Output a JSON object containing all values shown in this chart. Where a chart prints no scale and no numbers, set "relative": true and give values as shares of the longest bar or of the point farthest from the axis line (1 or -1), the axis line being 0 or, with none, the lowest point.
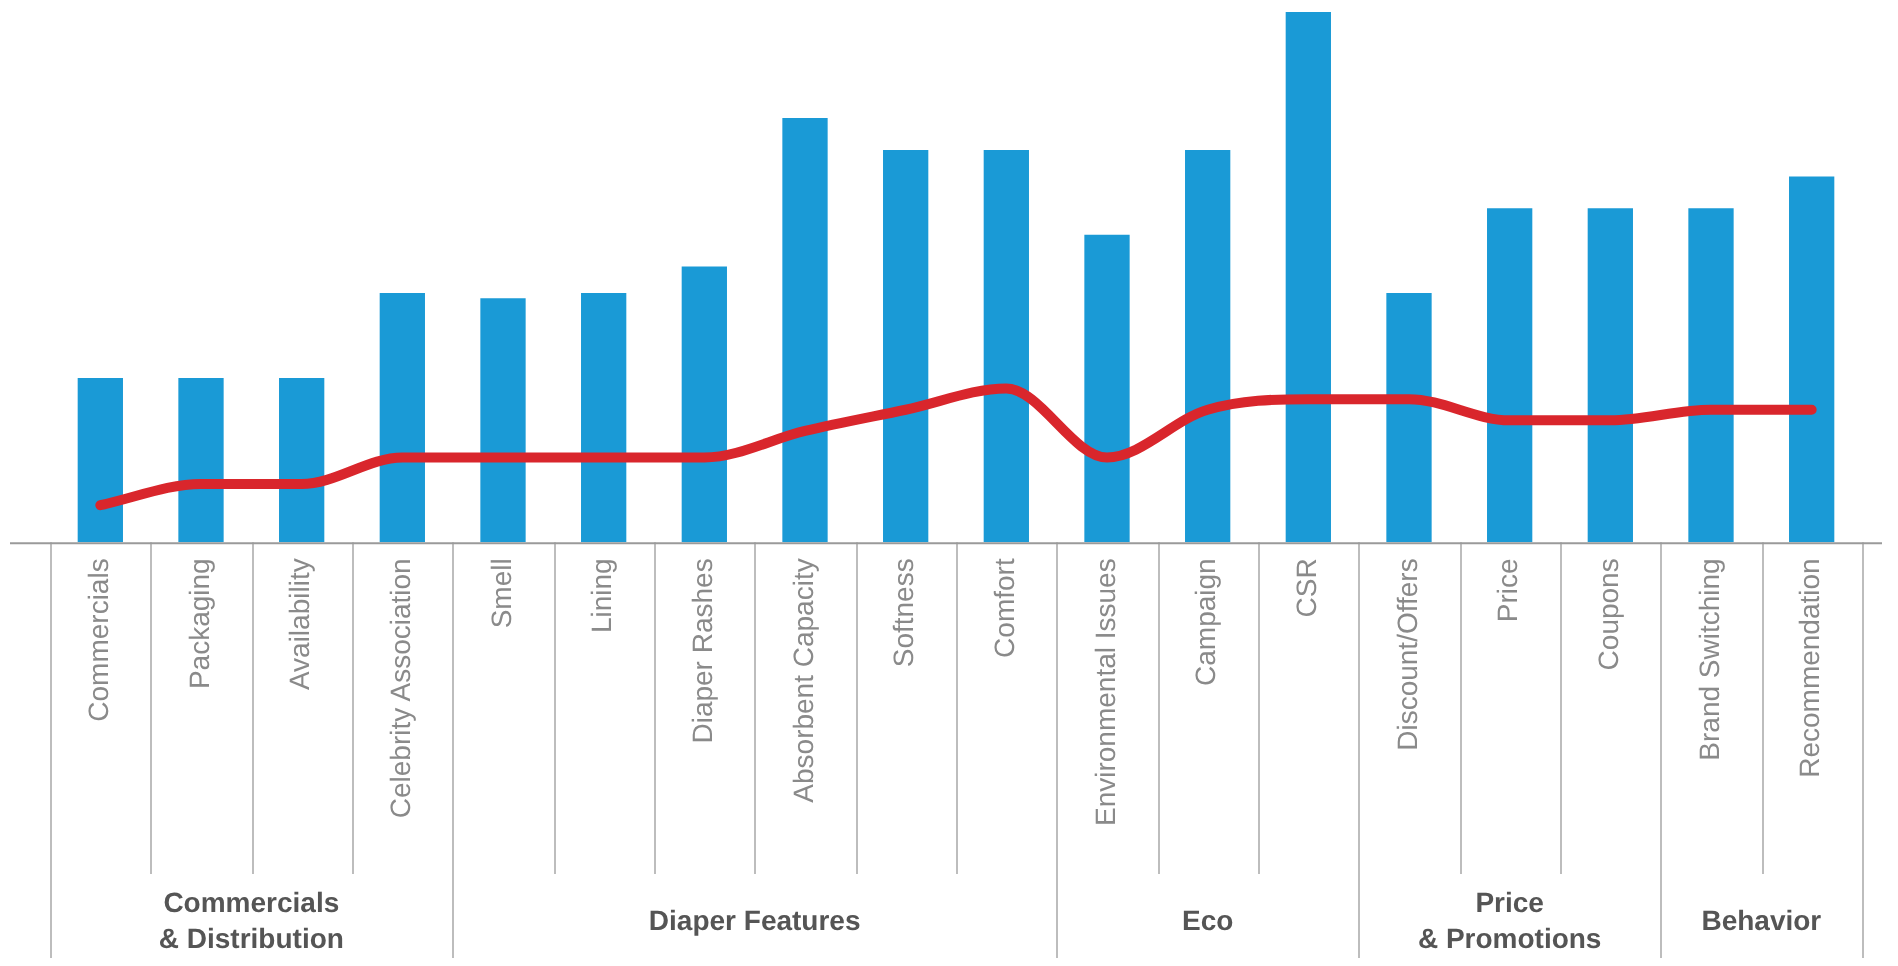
{
  "chart_data": {
    "type": "bar",
    "relative": true,
    "categories": [
      "Commercials",
      "Packaging",
      "Availability",
      "Celebrity Association",
      "Smell",
      "Lining",
      "Diaper Rashes",
      "Absorbent Capacity",
      "Softness",
      "Comfort",
      "Environmental Issues",
      "Campaign",
      "CSR",
      "Discount/Offers",
      "Price",
      "Coupons",
      "Brand Switching",
      "Recommendation"
    ],
    "series": [
      {
        "color": "#1a9ad6",
        "values": [
          0.31,
          0.31,
          0.31,
          0.47,
          0.46,
          0.47,
          0.52,
          0.8,
          0.74,
          0.74,
          0.58,
          0.74,
          1,
          0.47,
          0.63,
          0.63,
          0.63,
          0.69
        ]
      },
      {
        "type": "line",
        "color": "#d9262c",
        "values": [
          0.07,
          0.11,
          0.11,
          0.16,
          0.16,
          0.16,
          0.16,
          0.21,
          0.25,
          0.29,
          0.16,
          0.25,
          0.27,
          0.27,
          0.23,
          0.23,
          0.25,
          0.25
        ]
      }
    ],
    "annotations": [
      "Commercials & Distribution",
      "Diaper Features",
      "Eco",
      "Price & Promotions",
      "Behavior"
    ],
    "legend": false,
    "grid": false
  }
}
